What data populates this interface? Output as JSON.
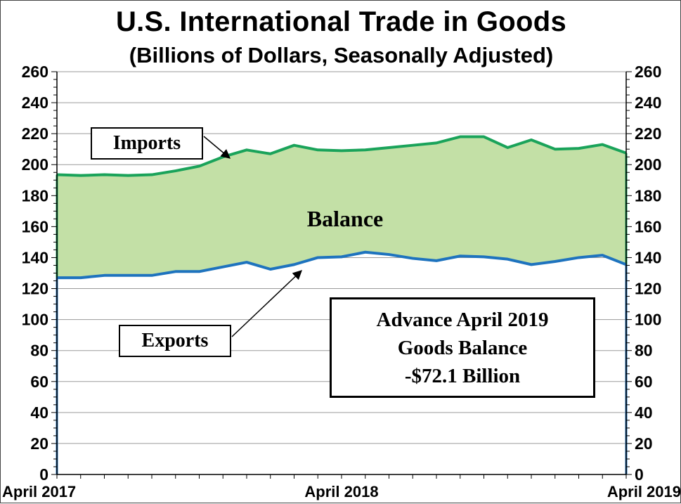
{
  "chart_data": {
    "type": "area",
    "title": "U.S. International Trade in Goods",
    "subtitle": "(Billions of Dollars, Seasonally Adjusted)",
    "x": [
      "2017-04",
      "2017-05",
      "2017-06",
      "2017-07",
      "2017-08",
      "2017-09",
      "2017-10",
      "2017-11",
      "2017-12",
      "2018-01",
      "2018-02",
      "2018-03",
      "2018-04",
      "2018-05",
      "2018-06",
      "2018-07",
      "2018-08",
      "2018-09",
      "2018-10",
      "2018-11",
      "2018-12",
      "2019-01",
      "2019-02",
      "2019-03",
      "2019-04"
    ],
    "x_tick_labels": [
      "April 2017",
      "April 2018",
      "April 2019"
    ],
    "series": [
      {
        "name": "Imports",
        "color": "#1aa35a",
        "values": [
          193.5,
          193,
          193.5,
          193,
          193.5,
          196,
          199,
          205,
          209.5,
          207,
          212.5,
          209.5,
          209,
          209.5,
          211,
          212.5,
          214,
          218,
          218,
          211,
          216,
          210,
          210.5,
          213,
          207.5
        ]
      },
      {
        "name": "Exports",
        "color": "#1e73be",
        "values": [
          127,
          127,
          128.5,
          128.5,
          128.5,
          131,
          131,
          134,
          137,
          132.5,
          135.5,
          140,
          140.5,
          143.5,
          142,
          139.5,
          138,
          141,
          140.5,
          139,
          135.5,
          137.5,
          140,
          141.5,
          135.5
        ]
      }
    ],
    "fill": {
      "label": "Balance",
      "color": "#c3e0a6"
    },
    "ylim": [
      0,
      260
    ],
    "y_ticks": [
      0,
      20,
      40,
      60,
      80,
      100,
      120,
      140,
      160,
      180,
      200,
      220,
      240,
      260
    ],
    "grid": true,
    "annotation": {
      "lines": [
        "Advance April 2019",
        "Goods Balance",
        "-$72.1 Billion"
      ]
    }
  }
}
